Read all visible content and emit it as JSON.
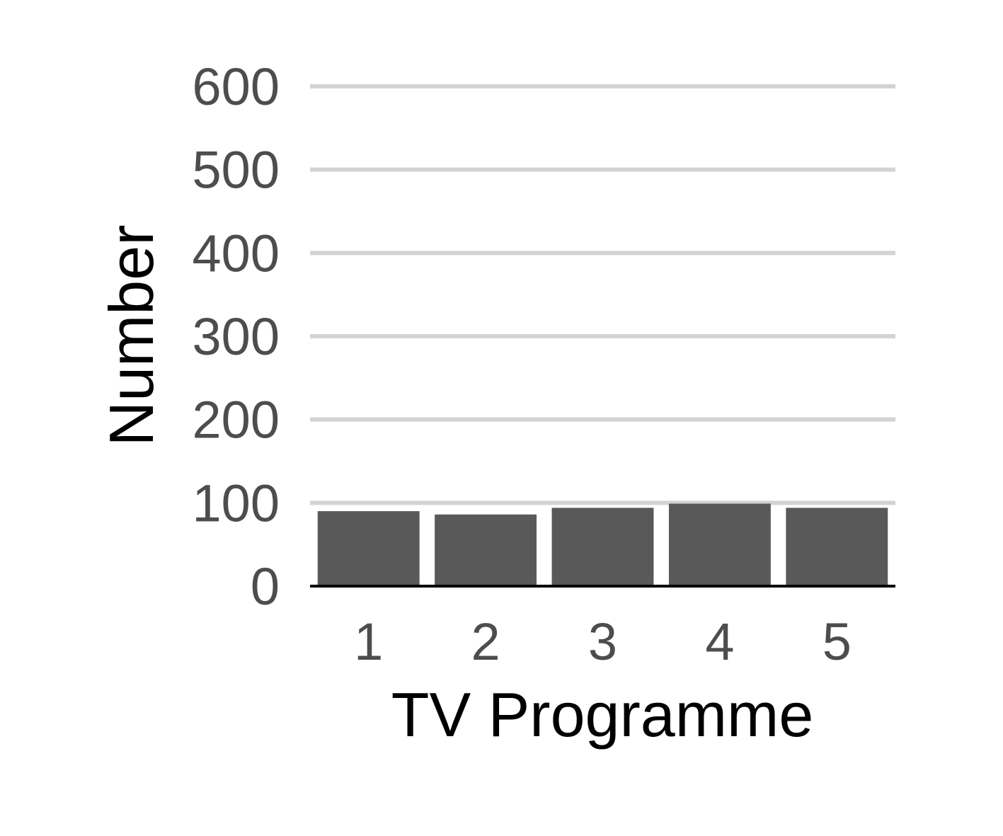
{
  "chart_data": {
    "type": "bar",
    "categories": [
      "1",
      "2",
      "3",
      "4",
      "5"
    ],
    "values": [
      90,
      86,
      94,
      99,
      94
    ],
    "title": "",
    "xlabel": "TV Programme",
    "ylabel": "Number",
    "ylim": [
      0,
      600
    ],
    "yticks": [
      0,
      100,
      200,
      300,
      400,
      500,
      600
    ],
    "grid": "horizontal",
    "legend": "none",
    "colors": {
      "bar": "#595959",
      "grid": "#d3d3d3",
      "axis": "#000000",
      "tick_text": "#4d4d4d",
      "title_text": "#000000"
    }
  }
}
